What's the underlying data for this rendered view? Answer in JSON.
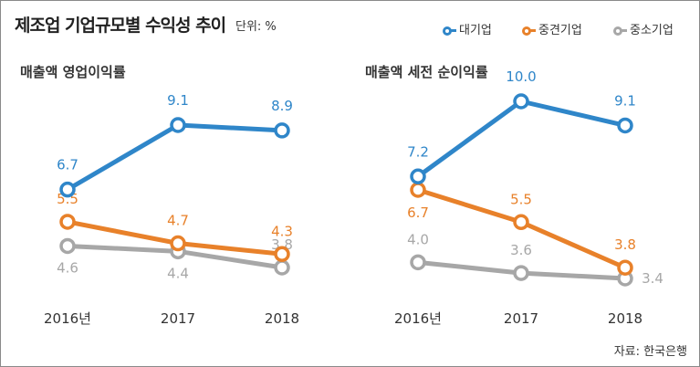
{
  "title": "제조업 기업규모별 수익성 추이",
  "unit": "단위: %",
  "legend": [
    {
      "label": "대기업",
      "color": "#2f86c9"
    },
    {
      "label": "중견기업",
      "color": "#e8812a"
    },
    {
      "label": "중소기업",
      "color": "#a7a7a7"
    }
  ],
  "source": "자료: 한국은행",
  "chart_data": [
    {
      "type": "line",
      "subtitle": "매출액 영업이익률",
      "categories": [
        "2016년",
        "2017",
        "2018"
      ],
      "series": [
        {
          "name": "대기업",
          "values": [
            6.7,
            9.1,
            8.9
          ],
          "labels": [
            "6.7",
            "9.1",
            "8.9"
          ],
          "color": "#2f86c9"
        },
        {
          "name": "중견기업",
          "values": [
            5.5,
            4.7,
            4.3
          ],
          "labels": [
            "5.5",
            "4.7",
            "4.3"
          ],
          "color": "#e8812a"
        },
        {
          "name": "중소기업",
          "values": [
            4.6,
            4.4,
            3.8
          ],
          "labels": [
            "4.6",
            "4.4",
            "3.8"
          ],
          "color": "#a7a7a7"
        }
      ]
    },
    {
      "type": "line",
      "subtitle": "매출액 세전 순이익률",
      "categories": [
        "2016년",
        "2017",
        "2018"
      ],
      "series": [
        {
          "name": "대기업",
          "values": [
            7.2,
            10.0,
            9.1
          ],
          "labels": [
            "7.2",
            "10.0",
            "9.1"
          ],
          "color": "#2f86c9"
        },
        {
          "name": "중견기업",
          "values": [
            6.7,
            5.5,
            3.8
          ],
          "labels": [
            "6.7",
            "5.5",
            "3.8"
          ],
          "color": "#e8812a"
        },
        {
          "name": "중소기업",
          "values": [
            4.0,
            3.6,
            3.4
          ],
          "labels": [
            "4.0",
            "3.6",
            "3.4"
          ],
          "color": "#a7a7a7"
        }
      ]
    }
  ]
}
